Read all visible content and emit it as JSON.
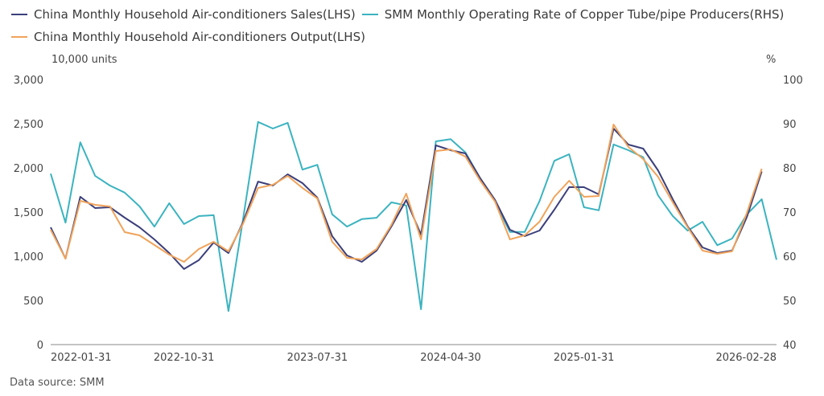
{
  "chart_data": {
    "type": "line",
    "title": "",
    "legend": [
      {
        "name": "China Monthly Household Air-conditioners Sales(LHS)",
        "color": "#3b3f7a"
      },
      {
        "name": "SMM Monthly Operating Rate of Copper Tube/pipe Producers(RHS)",
        "color": "#3bb3c0"
      },
      {
        "name": "China Monthly Household Air-conditioners Output(LHS)",
        "color": "#f0a35a"
      }
    ],
    "legend_position": "top-left",
    "left_axis": {
      "unit_label": "10,000 units",
      "ylim": [
        0,
        3000
      ],
      "ticks": [
        0,
        500,
        1000,
        1500,
        2000,
        2500,
        3000
      ],
      "tick_labels": [
        "0",
        "500",
        "1,000",
        "1,500",
        "2,000",
        "2,500",
        "3,000"
      ]
    },
    "right_axis": {
      "unit_label": "%",
      "ylim": [
        40,
        100
      ],
      "ticks": [
        40,
        50,
        60,
        70,
        80,
        90,
        100
      ],
      "tick_labels": [
        "40",
        "50",
        "60",
        "70",
        "80",
        "90",
        "100"
      ]
    },
    "x_start": "2022-01-31",
    "x_frequency": "monthly",
    "x_count": 50,
    "x_tick_labels": [
      {
        "index": 0,
        "label": "2022-01-31"
      },
      {
        "index": 9,
        "label": "2022-10-31"
      },
      {
        "index": 18,
        "label": "2023-07-31"
      },
      {
        "index": 27,
        "label": "2024-04-30"
      },
      {
        "index": 36,
        "label": "2025-01-31"
      },
      {
        "index": 49,
        "label": "2026-02-28"
      }
    ],
    "grid": false,
    "series": [
      {
        "name": "China Monthly Household Air-conditioners Sales(LHS)",
        "axis": "left",
        "color": "#3b3f7a",
        "values": [
          1327,
          973,
          1673,
          1545,
          1555,
          1436,
          1327,
          1190,
          1036,
          855,
          955,
          1155,
          1036,
          1391,
          1845,
          1800,
          1927,
          1827,
          1664,
          1227,
          1009,
          936,
          1064,
          1336,
          1636,
          1245,
          2255,
          2200,
          2164,
          1882,
          1636,
          1300,
          1227,
          1291,
          1527,
          1782,
          1782,
          1700,
          2445,
          2264,
          2218,
          1973,
          1645,
          1336,
          1100,
          1036,
          1064,
          1445,
          1960
        ]
      },
      {
        "name": "SMM Monthly Operating Rate of Copper Tube/pipe Producers(RHS)",
        "axis": "right",
        "color": "#3bb3c0",
        "values": [
          78.7,
          67.6,
          85.8,
          78.2,
          76.0,
          74.4,
          71.3,
          66.7,
          72.0,
          67.3,
          69.1,
          69.3,
          47.6,
          68.7,
          90.4,
          88.9,
          90.2,
          79.6,
          80.7,
          69.5,
          66.7,
          68.4,
          68.7,
          72.2,
          71.5,
          48.0,
          86.0,
          86.5,
          83.5,
          77.6,
          72.4,
          65.5,
          65.5,
          72.5,
          81.6,
          83.1,
          71.1,
          70.4,
          85.3,
          84.0,
          82.4,
          73.8,
          69.1,
          65.8,
          67.8,
          62.5,
          64.0,
          69.5,
          72.9,
          59.2
        ]
      },
      {
        "name": "China Monthly Household Air-conditioners Output(LHS)",
        "axis": "left",
        "color": "#f0a35a",
        "values": [
          1300,
          973,
          1627,
          1582,
          1564,
          1273,
          1236,
          1127,
          1018,
          936,
          1082,
          1164,
          1055,
          1373,
          1773,
          1809,
          1909,
          1773,
          1655,
          1164,
          982,
          964,
          1082,
          1355,
          1709,
          1191,
          2191,
          2209,
          2127,
          1855,
          1618,
          1191,
          1236,
          1391,
          1673,
          1855,
          1673,
          1682,
          2491,
          2236,
          2100,
          1900,
          1609,
          1327,
          1064,
          1027,
          1055,
          1491,
          1990
        ]
      }
    ]
  },
  "footer": {
    "source": "Data source:  SMM"
  }
}
